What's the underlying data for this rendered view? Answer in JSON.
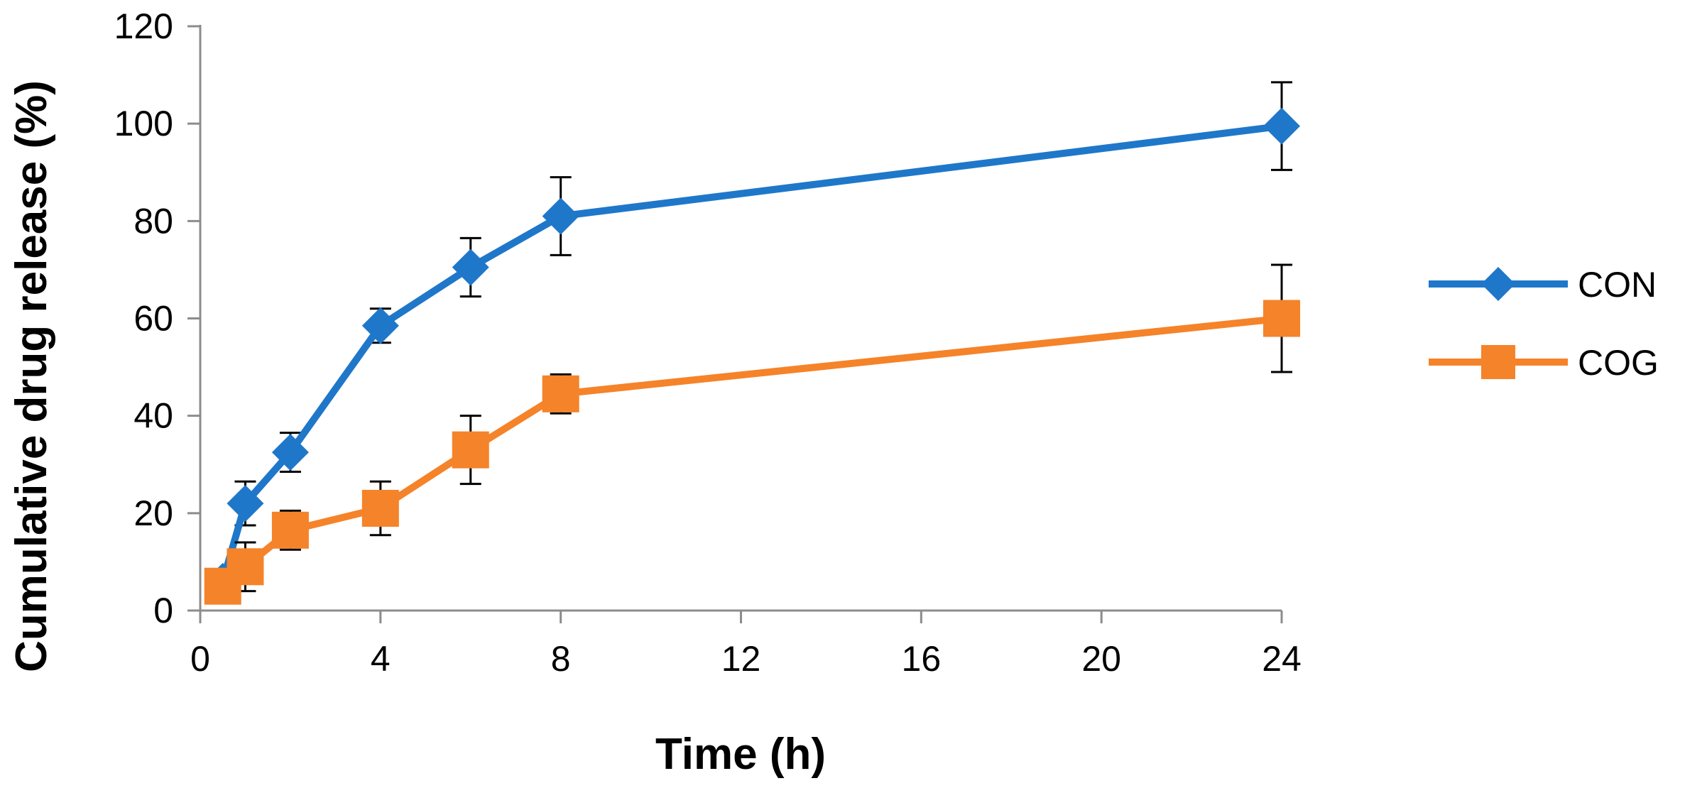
{
  "chart_data": {
    "type": "line",
    "title": "",
    "xlabel": "Time (h)",
    "ylabel": "Cumulative drug release (%)",
    "x_tick_labels": [
      "0",
      "4",
      "8",
      "12",
      "16",
      "20",
      "24"
    ],
    "y_tick_labels": [
      "0",
      "20",
      "40",
      "60",
      "80",
      "100",
      "120"
    ],
    "xlim": [
      0,
      24
    ],
    "ylim": [
      0,
      120
    ],
    "grid": false,
    "legend_position": "right",
    "x": [
      0.5,
      1,
      2,
      4,
      6,
      8,
      24
    ],
    "series": [
      {
        "name": "CON",
        "marker": "diamond",
        "color": "#1f77c9",
        "values": [
          6,
          22,
          32.5,
          58.5,
          70.5,
          81,
          99.5
        ],
        "errors": [
          2,
          4.5,
          4,
          3.5,
          6,
          8,
          9
        ]
      },
      {
        "name": "COG",
        "marker": "square",
        "color": "#f5832a",
        "values": [
          5,
          9,
          16.5,
          21,
          33,
          44.5,
          60
        ],
        "errors": [
          1,
          5,
          4,
          5.5,
          7,
          4,
          11
        ]
      }
    ]
  }
}
